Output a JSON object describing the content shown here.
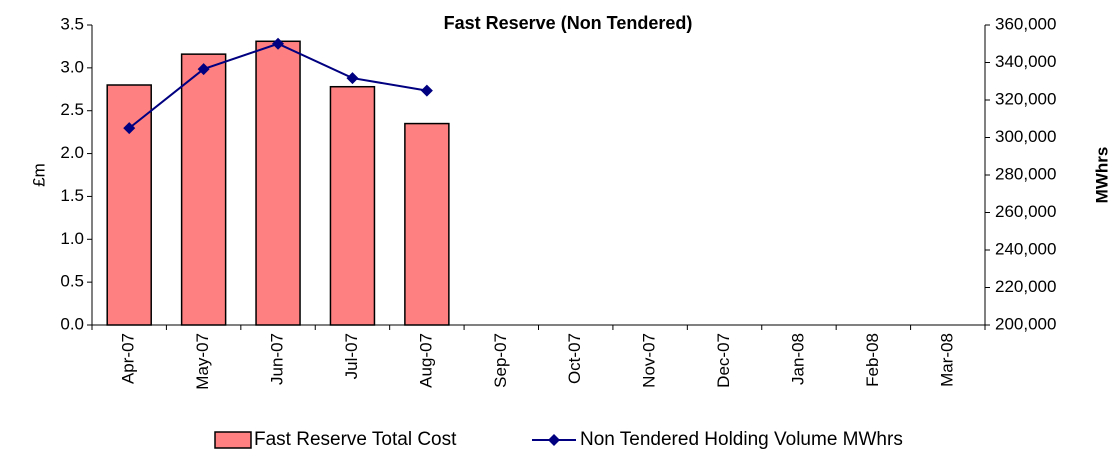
{
  "chart_data": {
    "type": "bar",
    "title": "Fast Reserve (Non Tendered)",
    "y_label": "£m",
    "y2_label": "MWhrs",
    "categories": [
      "Apr-07",
      "May-07",
      "Jun-07",
      "Jul-07",
      "Aug-07",
      "Sep-07",
      "Oct-07",
      "Nov-07",
      "Dec-07",
      "Jan-08",
      "Feb-08",
      "Mar-08"
    ],
    "series": [
      {
        "name": "Fast Reserve Total Cost",
        "type": "bar",
        "color": "#ff8080",
        "values": [
          2.8,
          3.16,
          3.31,
          2.78,
          2.35,
          null,
          null,
          null,
          null,
          null,
          null,
          null
        ]
      },
      {
        "name": "Non Tendered Holding Volume MWhrs",
        "type": "line",
        "axis": "y2",
        "color": "#000080",
        "values": [
          305000,
          336500,
          350000,
          331700,
          325000,
          null,
          null,
          null,
          null,
          null,
          null,
          null
        ]
      }
    ],
    "ylim": [
      0,
      3.5
    ],
    "yticks": [
      {
        "value": 0,
        "label": "0.0"
      },
      0.5,
      {
        "value": 1,
        "label": "1.0"
      },
      1.5,
      {
        "value": 2,
        "label": "2.0"
      },
      2.5,
      {
        "value": 3,
        "label": "3.0"
      },
      3.5
    ],
    "y2lim": [
      200000,
      360000
    ],
    "y2ticks": [
      {
        "value": 200000,
        "label": "200,000"
      },
      {
        "value": 220000,
        "label": "220,000"
      },
      {
        "value": 240000,
        "label": "240,000"
      },
      {
        "value": 260000,
        "label": "260,000"
      },
      {
        "value": 280000,
        "label": "280,000"
      },
      {
        "value": 300000,
        "label": "300,000"
      },
      {
        "value": 320000,
        "label": "320,000"
      },
      {
        "value": 340000,
        "label": "340,000"
      },
      {
        "value": 360000,
        "label": "360,000"
      }
    ],
    "legend": "bottom"
  }
}
